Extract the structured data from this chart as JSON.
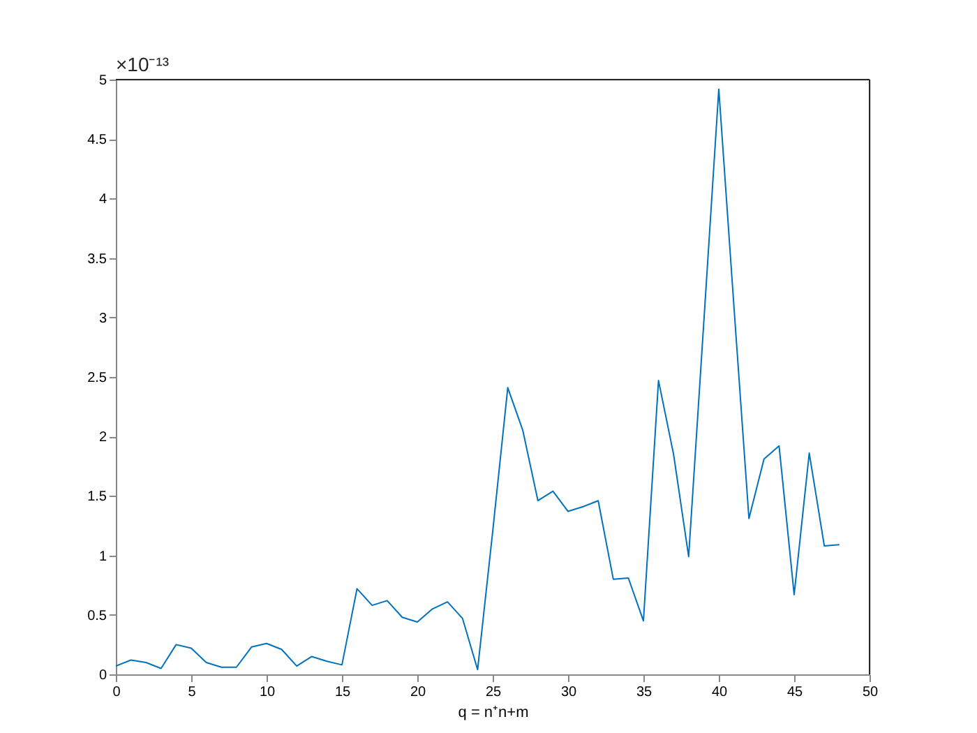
{
  "chart_data": {
    "type": "line",
    "xlabel": "q = n⁺n+m",
    "annotations": [
      "×10⁻¹³"
    ],
    "x": [
      0,
      1,
      2,
      3,
      4,
      5,
      6,
      7,
      8,
      9,
      10,
      11,
      12,
      13,
      14,
      15,
      16,
      17,
      18,
      19,
      20,
      21,
      22,
      23,
      24,
      25,
      26,
      27,
      28,
      29,
      30,
      31,
      32,
      33,
      34,
      35,
      36,
      37,
      38,
      39,
      40,
      41,
      42,
      43,
      44,
      45,
      46,
      47,
      48
    ],
    "series": [
      {
        "color": "#0072bd",
        "values": [
          0.07,
          0.12,
          0.1,
          0.05,
          0.25,
          0.22,
          0.1,
          0.06,
          0.06,
          0.23,
          0.26,
          0.21,
          0.07,
          0.15,
          0.11,
          0.08,
          0.72,
          0.58,
          0.62,
          0.48,
          0.44,
          0.55,
          0.61,
          0.47,
          0.04,
          1.2,
          2.41,
          2.05,
          1.46,
          1.54,
          1.37,
          1.41,
          1.46,
          0.8,
          0.81,
          0.45,
          2.47,
          1.85,
          0.99,
          2.95,
          4.92,
          3.1,
          1.31,
          1.81,
          1.92,
          0.67,
          1.86,
          1.08,
          1.09
        ]
      }
    ],
    "xlim": [
      0,
      50
    ],
    "xticks": [
      0,
      5,
      10,
      15,
      20,
      25,
      30,
      35,
      40,
      45,
      50
    ],
    "ylim": [
      0,
      5
    ],
    "yticks": [
      0,
      0.5,
      1,
      1.5,
      2,
      2.5,
      3,
      3.5,
      4,
      4.5,
      5
    ],
    "grid": false,
    "marker": "none",
    "line_style": "solid"
  }
}
